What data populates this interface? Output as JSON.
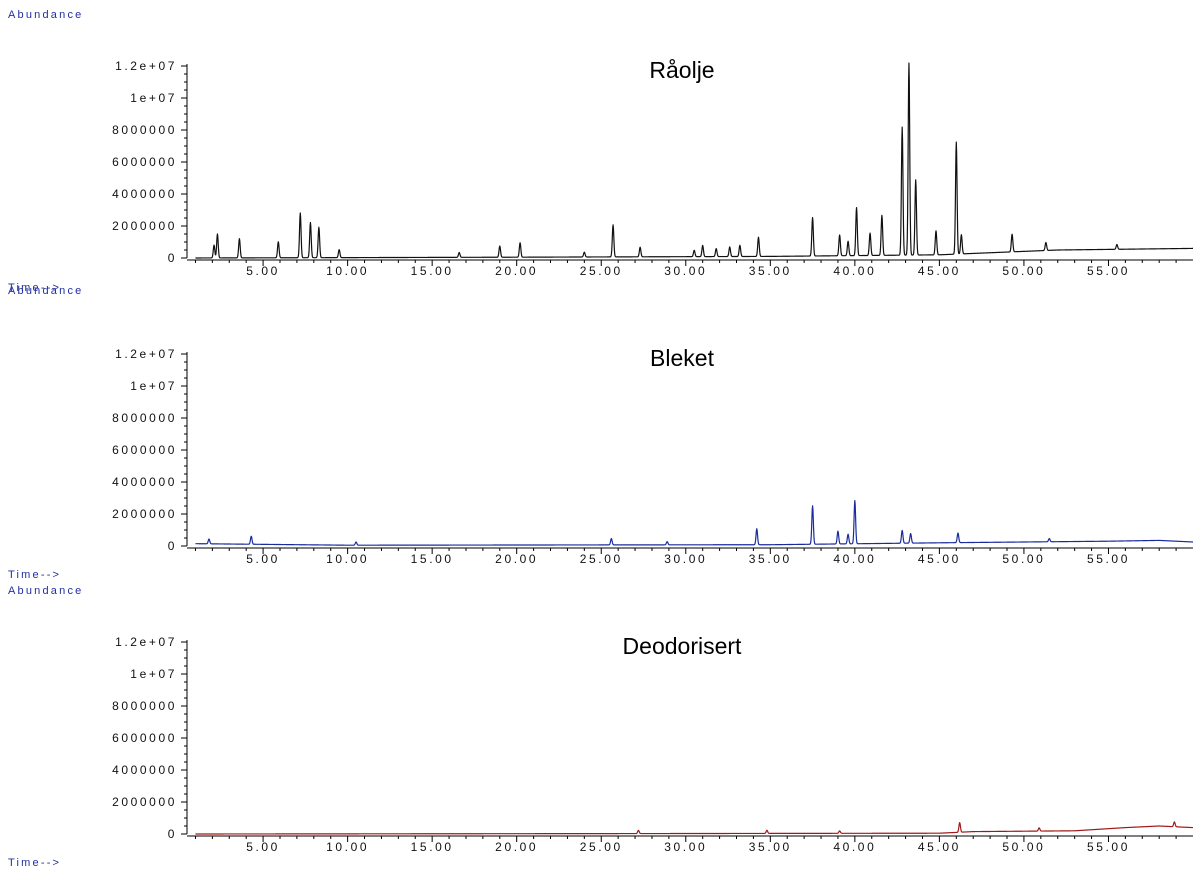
{
  "chart_data": [
    {
      "type": "line",
      "title": "Råolje",
      "ylabel": "Abundance",
      "xlabel": "Time-->",
      "xlim": [
        0.5,
        60
      ],
      "ylim": [
        0,
        12000000
      ],
      "yticks": [
        "0",
        "2000000",
        "4000000",
        "6000000",
        "8000000",
        "1e+07",
        "1.2e+07"
      ],
      "xticks": [
        "5.00",
        "10.00",
        "15.00",
        "20.00",
        "25.00",
        "30.00",
        "35.00",
        "40.00",
        "45.00",
        "50.00",
        "55.00"
      ],
      "line_color": "#111111",
      "baseline": [
        [
          0.5,
          0
        ],
        [
          20,
          50000
        ],
        [
          35,
          100000
        ],
        [
          45,
          200000
        ],
        [
          52,
          500000
        ],
        [
          60,
          600000
        ]
      ],
      "peaks": [
        [
          2.1,
          800000
        ],
        [
          2.3,
          1500000
        ],
        [
          3.6,
          1200000
        ],
        [
          5.9,
          1000000
        ],
        [
          7.2,
          2800000
        ],
        [
          7.8,
          2200000
        ],
        [
          8.3,
          1900000
        ],
        [
          9.5,
          500000
        ],
        [
          16.6,
          300000
        ],
        [
          19.0,
          700000
        ],
        [
          20.2,
          900000
        ],
        [
          24.0,
          300000
        ],
        [
          25.7,
          2000000
        ],
        [
          27.3,
          600000
        ],
        [
          30.5,
          400000
        ],
        [
          31.0,
          700000
        ],
        [
          31.8,
          500000
        ],
        [
          32.6,
          600000
        ],
        [
          33.2,
          700000
        ],
        [
          34.3,
          1200000
        ],
        [
          37.5,
          2400000
        ],
        [
          39.1,
          1300000
        ],
        [
          39.6,
          900000
        ],
        [
          40.1,
          3000000
        ],
        [
          40.9,
          1400000
        ],
        [
          41.6,
          2500000
        ],
        [
          42.8,
          8000000
        ],
        [
          43.2,
          12000000
        ],
        [
          43.6,
          4700000
        ],
        [
          44.8,
          1500000
        ],
        [
          46.0,
          7000000
        ],
        [
          46.3,
          1200000
        ],
        [
          49.3,
          1100000
        ],
        [
          51.3,
          500000
        ],
        [
          55.5,
          300000
        ]
      ]
    },
    {
      "type": "line",
      "title": "Bleket",
      "ylabel": "Abundance",
      "xlabel": "Time-->",
      "xlim": [
        0.5,
        60
      ],
      "ylim": [
        0,
        12000000
      ],
      "yticks": [
        "0",
        "2000000",
        "4000000",
        "6000000",
        "8000000",
        "1e+07",
        "1.2e+07"
      ],
      "xticks": [
        "5.00",
        "10.00",
        "15.00",
        "20.00",
        "25.00",
        "30.00",
        "35.00",
        "40.00",
        "45.00",
        "50.00",
        "55.00"
      ],
      "line_color": "#1a2b9e",
      "baseline": [
        [
          0.5,
          150000
        ],
        [
          10,
          50000
        ],
        [
          35,
          80000
        ],
        [
          45,
          200000
        ],
        [
          55,
          300000
        ],
        [
          58,
          350000
        ],
        [
          60,
          250000
        ]
      ],
      "peaks": [
        [
          1.8,
          300000
        ],
        [
          4.3,
          500000
        ],
        [
          10.5,
          200000
        ],
        [
          25.6,
          400000
        ],
        [
          28.9,
          200000
        ],
        [
          34.2,
          1000000
        ],
        [
          37.5,
          2400000
        ],
        [
          39.0,
          800000
        ],
        [
          39.6,
          600000
        ],
        [
          40.0,
          2700000
        ],
        [
          42.8,
          800000
        ],
        [
          43.3,
          600000
        ],
        [
          46.1,
          600000
        ],
        [
          51.5,
          200000
        ]
      ]
    },
    {
      "type": "line",
      "title": "Deodorisert",
      "ylabel": "Abundance",
      "xlabel": "Time-->",
      "xlim": [
        0.5,
        60
      ],
      "ylim": [
        0,
        12000000
      ],
      "yticks": [
        "0",
        "2000000",
        "4000000",
        "6000000",
        "8000000",
        "1e+07",
        "1.2e+07"
      ],
      "xticks": [
        "5.00",
        "10.00",
        "15.00",
        "20.00",
        "25.00",
        "30.00",
        "35.00",
        "40.00",
        "45.00",
        "50.00",
        "55.00"
      ],
      "line_color": "#a01818",
      "baseline": [
        [
          0.5,
          0
        ],
        [
          30,
          30000
        ],
        [
          45,
          50000
        ],
        [
          47,
          150000
        ],
        [
          53,
          200000
        ],
        [
          56,
          400000
        ],
        [
          58,
          500000
        ],
        [
          60,
          400000
        ]
      ],
      "peaks": [
        [
          27.2,
          200000
        ],
        [
          34.8,
          200000
        ],
        [
          39.1,
          150000
        ],
        [
          46.2,
          600000
        ],
        [
          50.9,
          200000
        ],
        [
          58.9,
          300000
        ]
      ]
    }
  ]
}
